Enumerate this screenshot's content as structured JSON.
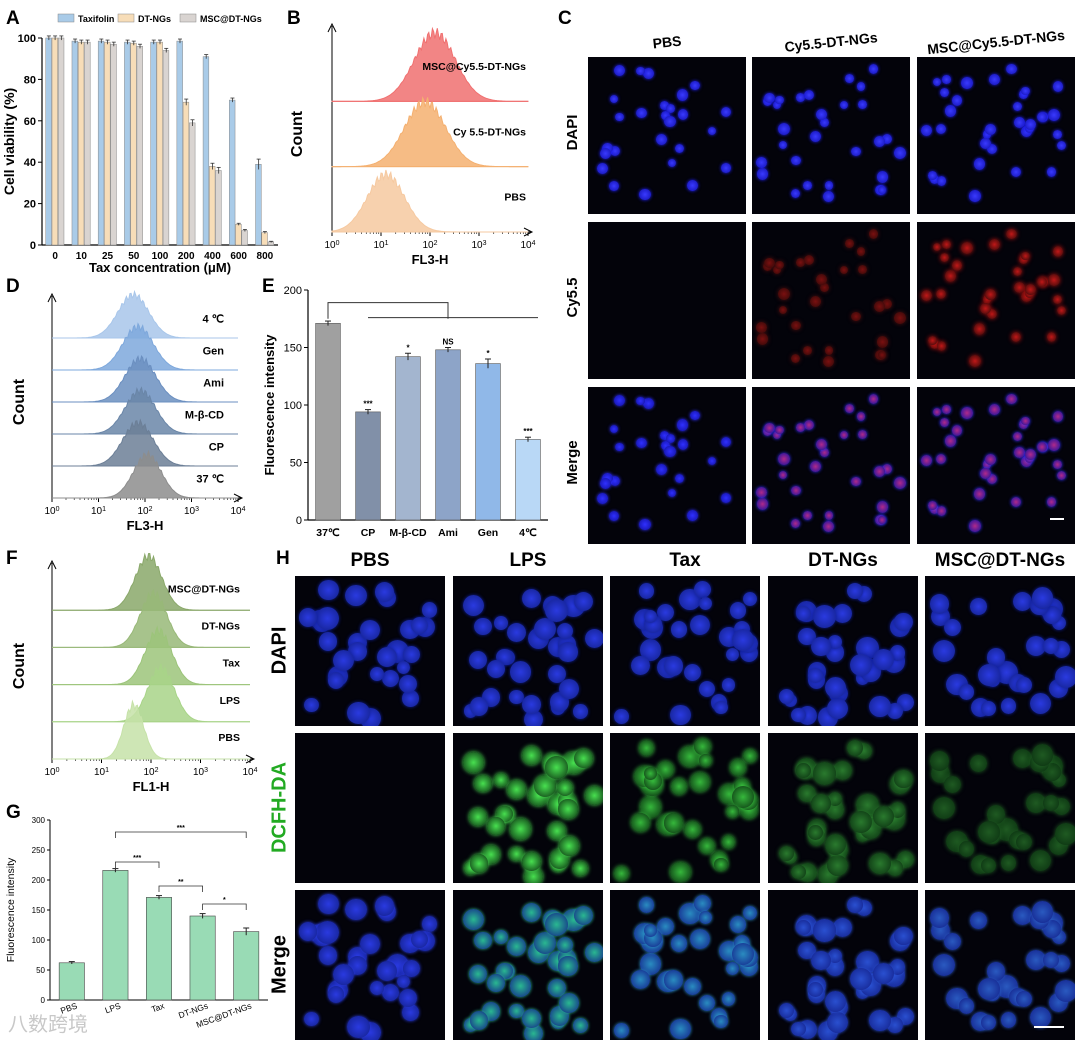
{
  "panels": {
    "A": "A",
    "B": "B",
    "C": "C",
    "D": "D",
    "E": "E",
    "F": "F",
    "G": "G",
    "H": "H"
  },
  "chart_data": [
    {
      "id": "A",
      "type": "bar",
      "ylabel": "Cell viability (%)",
      "xlabel": "Tax concentration (μM)",
      "categories": [
        "0",
        "10",
        "25",
        "50",
        "100",
        "200",
        "400",
        "600",
        "800"
      ],
      "ylim": [
        0,
        100
      ],
      "yticks": [
        "0",
        "20",
        "40",
        "60",
        "80",
        "100"
      ],
      "legend_position": "top",
      "series": [
        {
          "name": "Taxifolin",
          "color": "#a9cbe8",
          "values": [
            100,
            98.5,
            98.5,
            98,
            98,
            98.5,
            91,
            70,
            39
          ],
          "errors": [
            1,
            1,
            1,
            1,
            1,
            1,
            1,
            1,
            2.5
          ]
        },
        {
          "name": "DT-NGs",
          "color": "#f7ddb8",
          "values": [
            100,
            98,
            98,
            97.5,
            98,
            69,
            38,
            10,
            6
          ],
          "errors": [
            1,
            1,
            1,
            1,
            1,
            1.5,
            1.5,
            0.5,
            0.5
          ]
        },
        {
          "name": "MSC@DT-NGs",
          "color": "#d9d4d1",
          "values": [
            100,
            98,
            97,
            96,
            94,
            59,
            36,
            7,
            1.5
          ],
          "errors": [
            1,
            1,
            1,
            1,
            1,
            1.5,
            1.5,
            0.5,
            0.3
          ]
        }
      ]
    },
    {
      "id": "B",
      "type": "area",
      "ylabel": "Count",
      "xlabel": "FL3-H",
      "xscale": "log",
      "xticks": [
        "10",
        "10",
        "10",
        "10",
        "10"
      ],
      "xtick_exps": [
        "0",
        "1",
        "2",
        "3",
        "4"
      ],
      "series": [
        {
          "name": "MSC@Cy5.5-DT-NGs",
          "color": "#f07070",
          "peak_log": 2.1,
          "width": 0.42,
          "height": 0.95
        },
        {
          "name": "Cy 5.5-DT-NGs",
          "color": "#f4b070",
          "peak_log": 1.9,
          "width": 0.42,
          "height": 0.9
        },
        {
          "name": "PBS",
          "color": "#f6c9a0",
          "peak_log": 1.1,
          "width": 0.38,
          "height": 0.8
        }
      ]
    },
    {
      "id": "D",
      "type": "area",
      "ylabel": "Count",
      "xlabel": "FL3-H",
      "xscale": "log",
      "xticks": [
        "10",
        "10",
        "10",
        "10",
        "10"
      ],
      "xtick_exps": [
        "0",
        "1",
        "2",
        "3",
        "4"
      ],
      "series": [
        {
          "name": "4 ℃",
          "color": "#a8c6ea",
          "peak_log": 1.75,
          "width": 0.33
        },
        {
          "name": "Gen",
          "color": "#7ea8dc",
          "peak_log": 1.85,
          "width": 0.33
        },
        {
          "name": "Ami",
          "color": "#6b8fc0",
          "peak_log": 1.9,
          "width": 0.33
        },
        {
          "name": "M-β-CD",
          "color": "#6a86a8",
          "peak_log": 1.9,
          "width": 0.33
        },
        {
          "name": "CP",
          "color": "#6c7f97",
          "peak_log": 1.85,
          "width": 0.33
        },
        {
          "name": "37 ℃",
          "color": "#8d8d8d",
          "peak_log": 2.05,
          "width": 0.3
        }
      ]
    },
    {
      "id": "E",
      "type": "bar",
      "ylabel": "Fluorescence intensity",
      "categories": [
        "37℃",
        "CP",
        "M-β-CD",
        "Ami",
        "Gen",
        "4℃"
      ],
      "values": [
        171,
        94,
        142,
        148,
        136,
        70
      ],
      "errors": [
        2,
        2,
        3,
        2,
        4,
        2
      ],
      "colors": [
        "#a0a0a0",
        "#8190a8",
        "#a3b5cf",
        "#8da4c8",
        "#90b8e8",
        "#b9d8f6"
      ],
      "significance": [
        "",
        "***",
        "*",
        "NS",
        "*",
        "***"
      ],
      "ylim": [
        0,
        200
      ],
      "yticks": [
        "0",
        "50",
        "100",
        "150",
        "200"
      ]
    },
    {
      "id": "F",
      "type": "area",
      "ylabel": "Count",
      "xlabel": "FL1-H",
      "xscale": "log",
      "xticks": [
        "10",
        "10",
        "10",
        "10",
        "10"
      ],
      "xtick_exps": [
        "0",
        "1",
        "2",
        "3",
        "4"
      ],
      "series": [
        {
          "name": "MSC@DT-NGs",
          "color": "#8aa86a",
          "peak_log": 1.95,
          "width": 0.27
        },
        {
          "name": "DT-NGs",
          "color": "#98b878",
          "peak_log": 2.05,
          "width": 0.27
        },
        {
          "name": "Tax",
          "color": "#9cc47a",
          "peak_log": 2.15,
          "width": 0.27
        },
        {
          "name": "LPS",
          "color": "#a8d488",
          "peak_log": 2.2,
          "width": 0.27
        },
        {
          "name": "PBS",
          "color": "#c6e2a8",
          "peak_log": 1.65,
          "width": 0.2
        }
      ]
    },
    {
      "id": "G",
      "type": "bar",
      "ylabel": "Fluorescence intensity",
      "categories": [
        "PBS",
        "LPS",
        "Tax",
        "DT-NGs",
        "MSC@DT-NGs"
      ],
      "values": [
        62,
        216,
        171,
        140,
        114
      ],
      "errors": [
        2,
        3,
        3,
        4,
        6
      ],
      "color": "#99dbb5",
      "ylim": [
        0,
        300
      ],
      "yticks": [
        "0",
        "50",
        "100",
        "150",
        "200",
        "250",
        "300"
      ],
      "brackets": [
        "***",
        "**",
        "*",
        "***"
      ]
    }
  ],
  "panelC": {
    "columns": [
      "PBS",
      "Cy5.5-DT-NGs",
      "MSC@Cy5.5-DT-NGs"
    ],
    "rows": [
      "DAPI",
      "Cy5.5",
      "Merge"
    ]
  },
  "panelH": {
    "columns": [
      "PBS",
      "LPS",
      "Tax",
      "DT-NGs",
      "MSC@DT-NGs"
    ],
    "rows": [
      "DAPI",
      "DCFH-DA",
      "Merge"
    ],
    "row_colors": [
      "#000000",
      "#22aa22",
      "#000000"
    ]
  },
  "watermark": "八数跨境"
}
